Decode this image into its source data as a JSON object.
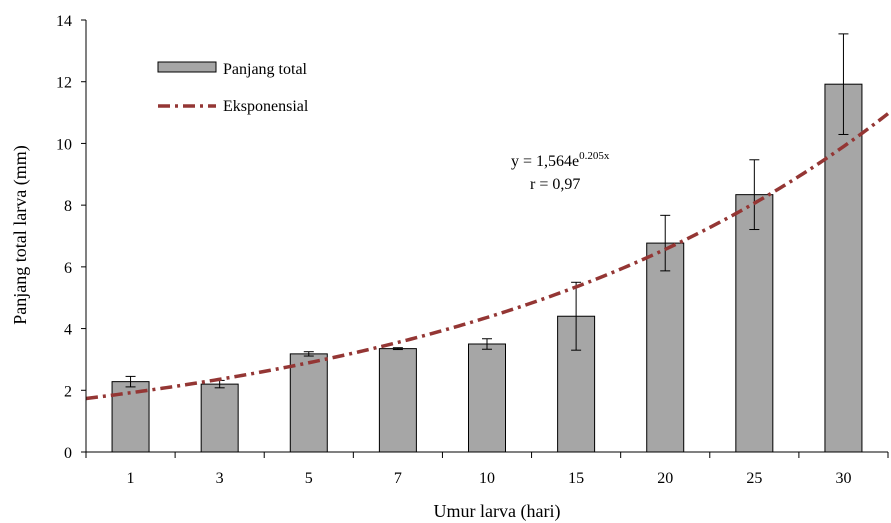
{
  "chart_data": {
    "type": "bar",
    "title": "",
    "xlabel": "Umur larva  (hari)",
    "ylabel": "Panjang total larva (mm)",
    "categories": [
      "1",
      "3",
      "5",
      "7",
      "10",
      "15",
      "20",
      "25",
      "30"
    ],
    "series": [
      {
        "name": "Panjang total",
        "values": [
          2.28,
          2.2,
          3.18,
          3.35,
          3.5,
          4.4,
          6.77,
          8.34,
          11.92
        ],
        "errors": [
          0.17,
          0.12,
          0.07,
          0.03,
          0.17,
          1.1,
          0.9,
          1.13,
          1.63
        ],
        "color": "#a6a6a6"
      }
    ],
    "trendline": {
      "name": "Eksponensial",
      "a": 1.564,
      "b": 0.205,
      "color": "#943634",
      "style": "dash-dot"
    },
    "annotation": {
      "equation_prefix": "y = 1,564e",
      "equation_exponent": "0.205x",
      "r_text": "r = 0,97"
    },
    "ylim": [
      0,
      14
    ],
    "yticks": [
      0,
      2,
      4,
      6,
      8,
      10,
      12,
      14
    ],
    "legend_position": "top-left",
    "grid": false
  }
}
